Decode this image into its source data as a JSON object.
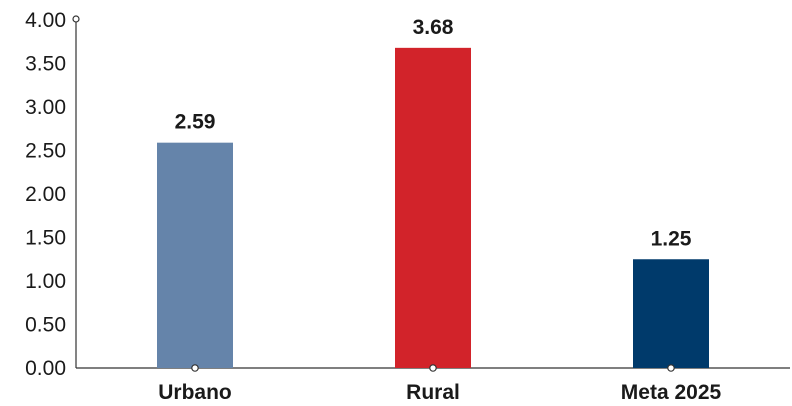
{
  "chart_data": {
    "type": "bar",
    "categories": [
      "Urbano",
      "Rural",
      "Meta 2025"
    ],
    "values": [
      2.59,
      3.68,
      1.25
    ],
    "data_labels": [
      "2.59",
      "3.68",
      "1.25"
    ],
    "bar_colors": [
      "#6584AA",
      "#D2232A",
      "#003A6B"
    ],
    "ylim": [
      0,
      4
    ],
    "yticks": [
      "0.00",
      "0.50",
      "1.00",
      "1.50",
      "2.00",
      "2.50",
      "3.00",
      "3.50",
      "4.00"
    ],
    "title": "",
    "xlabel": "",
    "ylabel": "",
    "grid": false,
    "legend": "none"
  }
}
